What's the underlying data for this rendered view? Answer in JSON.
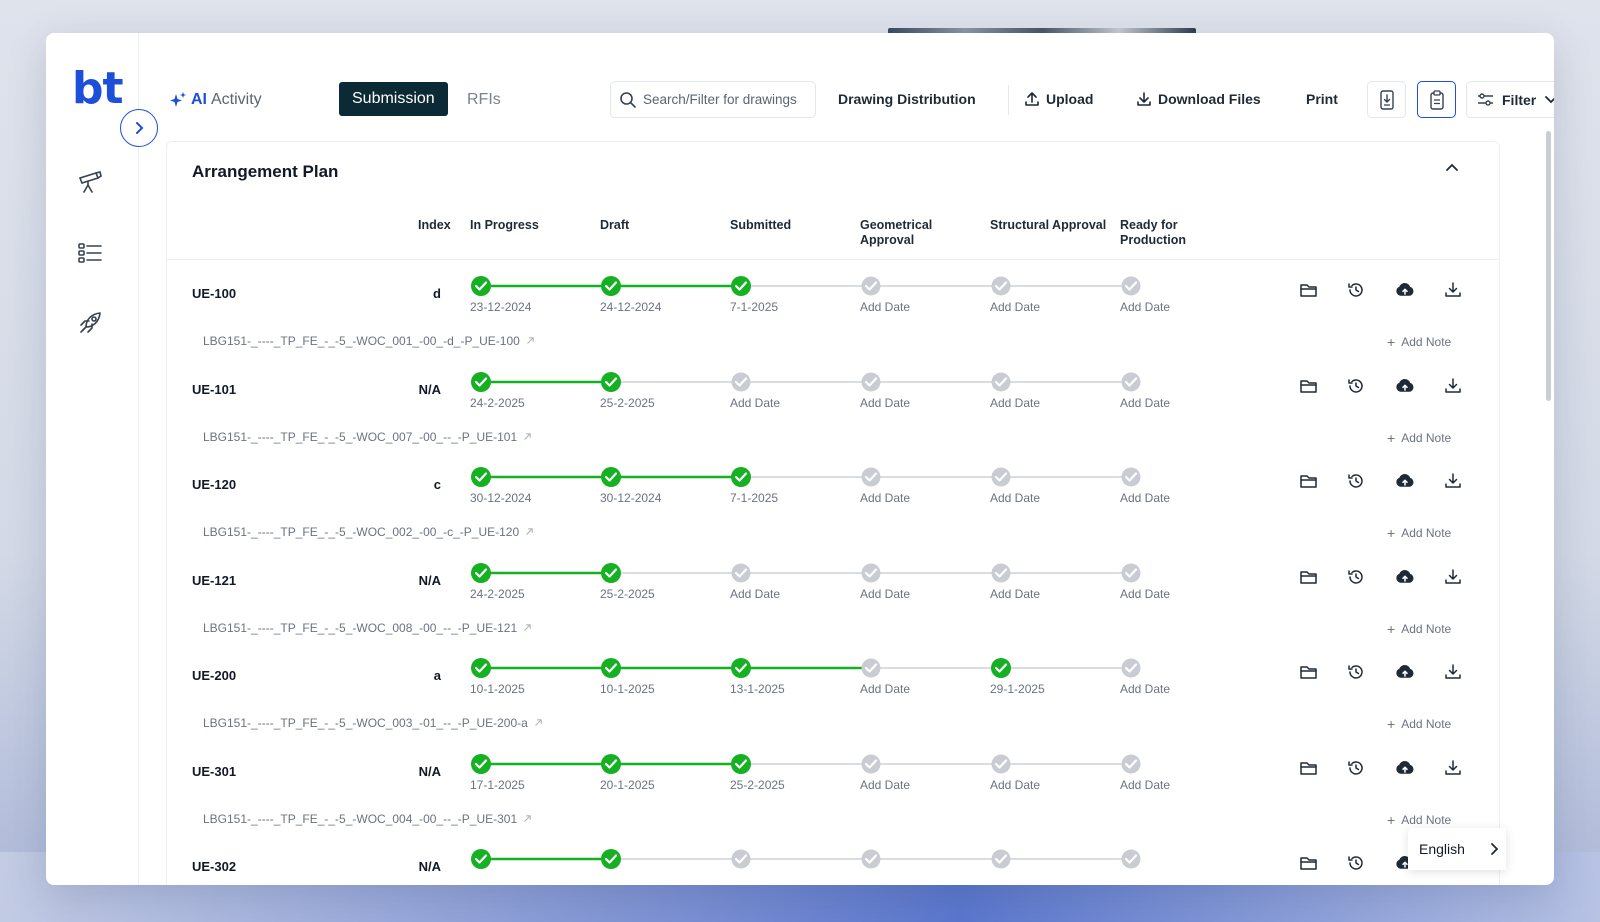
{
  "sidebar": {
    "logo": "bt",
    "icons": [
      "telescope-icon",
      "checklist-icon",
      "rocket-icon"
    ]
  },
  "toolbar": {
    "ai_prefix": "AI",
    "ai_label": "Activity",
    "tabs": [
      "Submission",
      "RFIs"
    ],
    "search_placeholder": "Search/Filter for drawings",
    "drawing_distribution": "Drawing Distribution",
    "upload": "Upload",
    "download_files": "Download Files",
    "print": "Print",
    "filter": "Filter"
  },
  "panel": {
    "title": "Arrangement Plan",
    "columns": {
      "index": "Index",
      "stages": [
        "In Progress",
        "Draft",
        "Submitted",
        "Geometrical Approval",
        "Structural Approval",
        "Ready for Production"
      ]
    },
    "add_note": "Add Note",
    "add_date": "Add Date"
  },
  "rows": [
    {
      "id": "UE-100",
      "index": "d",
      "file": "LBG151-_----_TP_FE_-_-5_-WOC_001_-00_-d_-P_UE-100",
      "stages": [
        true,
        true,
        true,
        false,
        false,
        false
      ],
      "dates": [
        "23-12-2024",
        "24-12-2024",
        "7-1-2025",
        "Add Date",
        "Add Date",
        "Add Date"
      ]
    },
    {
      "id": "UE-101",
      "index": "N/A",
      "file": "LBG151-_----_TP_FE_-_-5_-WOC_007_-00_--_-P_UE-101",
      "stages": [
        true,
        true,
        false,
        false,
        false,
        false
      ],
      "dates": [
        "24-2-2025",
        "25-2-2025",
        "Add Date",
        "Add Date",
        "Add Date",
        "Add Date"
      ]
    },
    {
      "id": "UE-120",
      "index": "c",
      "file": "LBG151-_----_TP_FE_-_-5_-WOC_002_-00_-c_-P_UE-120",
      "stages": [
        true,
        true,
        true,
        false,
        false,
        false
      ],
      "dates": [
        "30-12-2024",
        "30-12-2024",
        "7-1-2025",
        "Add Date",
        "Add Date",
        "Add Date"
      ]
    },
    {
      "id": "UE-121",
      "index": "N/A",
      "file": "LBG151-_----_TP_FE_-_-5_-WOC_008_-00_--_-P_UE-121",
      "stages": [
        true,
        true,
        false,
        false,
        false,
        false
      ],
      "dates": [
        "24-2-2025",
        "25-2-2025",
        "Add Date",
        "Add Date",
        "Add Date",
        "Add Date"
      ]
    },
    {
      "id": "UE-200",
      "index": "a",
      "file": "LBG151-_----_TP_FE_-_-5_-WOC_003_-01_--_-P_UE-200-a",
      "stages": [
        true,
        true,
        true,
        false,
        true,
        false
      ],
      "dates": [
        "10-1-2025",
        "10-1-2025",
        "13-1-2025",
        "Add Date",
        "29-1-2025",
        "Add Date"
      ]
    },
    {
      "id": "UE-301",
      "index": "N/A",
      "file": "LBG151-_----_TP_FE_-_-5_-WOC_004_-00_--_-P_UE-301",
      "stages": [
        true,
        true,
        true,
        false,
        false,
        false
      ],
      "dates": [
        "17-1-2025",
        "20-1-2025",
        "25-2-2025",
        "Add Date",
        "Add Date",
        "Add Date"
      ]
    },
    {
      "id": "UE-302",
      "index": "N/A",
      "file": "",
      "stages": [
        true,
        true,
        false,
        false,
        false,
        false
      ],
      "dates": [
        "",
        "",
        "",
        "",
        "",
        ""
      ]
    }
  ],
  "language": "English",
  "colors": {
    "accent": "#1d4fd8",
    "success": "#16b023",
    "pending": "#c9cdd3",
    "dark_tab": "#0b2a36"
  }
}
